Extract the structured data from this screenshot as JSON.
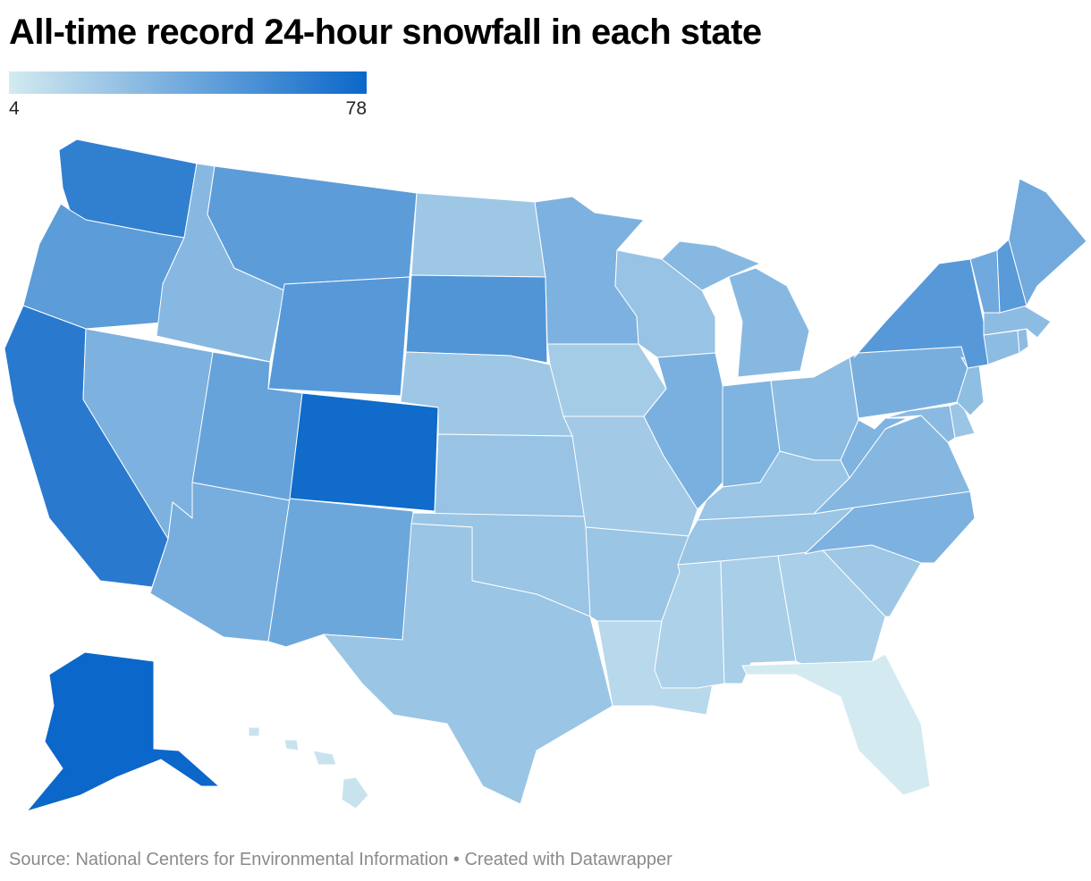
{
  "title": "All-time record 24-hour snowfall in each state",
  "legend": {
    "min_label": "4",
    "max_label": "78",
    "min_value": 4,
    "max_value": 78,
    "color_low": "#d3eaf0",
    "color_high": "#0b67c9"
  },
  "footer": "Source: National Centers for Environmental Information • Created with Datawrapper",
  "states": [
    {
      "id": "WA",
      "value": 64
    },
    {
      "id": "OR",
      "value": 48
    },
    {
      "id": "CA",
      "value": 67
    },
    {
      "id": "ID",
      "value": 32
    },
    {
      "id": "NV",
      "value": 36
    },
    {
      "id": "MT",
      "value": 48
    },
    {
      "id": "WY",
      "value": 50
    },
    {
      "id": "UT",
      "value": 44
    },
    {
      "id": "AZ",
      "value": 38
    },
    {
      "id": "CO",
      "value": 76
    },
    {
      "id": "NM",
      "value": 42
    },
    {
      "id": "ND",
      "value": 24
    },
    {
      "id": "SD",
      "value": 52
    },
    {
      "id": "NE",
      "value": 24
    },
    {
      "id": "KS",
      "value": 26
    },
    {
      "id": "OK",
      "value": 25
    },
    {
      "id": "TX",
      "value": 25
    },
    {
      "id": "MN",
      "value": 36
    },
    {
      "id": "IA",
      "value": 21
    },
    {
      "id": "MO",
      "value": 22
    },
    {
      "id": "AR",
      "value": 25
    },
    {
      "id": "LA",
      "value": 14
    },
    {
      "id": "WI",
      "value": 26
    },
    {
      "id": "IL",
      "value": 37
    },
    {
      "id": "MI",
      "value": 32
    },
    {
      "id": "IN",
      "value": 35
    },
    {
      "id": "OH",
      "value": 30
    },
    {
      "id": "KY",
      "value": 25
    },
    {
      "id": "TN",
      "value": 25
    },
    {
      "id": "MS",
      "value": 18
    },
    {
      "id": "AL",
      "value": 20
    },
    {
      "id": "GA",
      "value": 19
    },
    {
      "id": "FL",
      "value": 4
    },
    {
      "id": "SC",
      "value": 24
    },
    {
      "id": "NC",
      "value": 36
    },
    {
      "id": "VA",
      "value": 33
    },
    {
      "id": "WV",
      "value": 35
    },
    {
      "id": "PA",
      "value": 38
    },
    {
      "id": "NY",
      "value": 50
    },
    {
      "id": "VT",
      "value": 41
    },
    {
      "id": "NH",
      "value": 49
    },
    {
      "id": "ME",
      "value": 40
    },
    {
      "id": "MA",
      "value": 30
    },
    {
      "id": "CT",
      "value": 30
    },
    {
      "id": "RI",
      "value": 30
    },
    {
      "id": "NJ",
      "value": 29
    },
    {
      "id": "DE",
      "value": 25
    },
    {
      "id": "MD",
      "value": 31
    },
    {
      "id": "AK",
      "value": 78
    },
    {
      "id": "HI",
      "value": 8
    }
  ]
}
